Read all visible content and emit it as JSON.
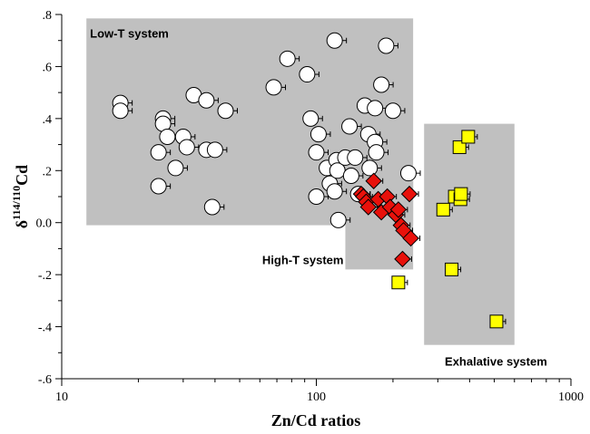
{
  "chart_data": {
    "type": "scatter",
    "xlabel": "Zn/Cd ratios",
    "ylabel_main": "δ",
    "ylabel_sup": "114/110",
    "ylabel_tail": "Cd",
    "x_scale": "log",
    "xlim": [
      10,
      1000
    ],
    "ylim": [
      -0.6,
      0.8
    ],
    "x_ticks": [
      10,
      100,
      1000
    ],
    "x_tick_labels": [
      "10",
      "100",
      "1000"
    ],
    "y_ticks": [
      -0.6,
      -0.4,
      -0.2,
      0.0,
      0.2,
      0.4,
      0.6,
      0.8
    ],
    "y_tick_labels": [
      "-.6",
      "-.4",
      "-.2",
      "0.0",
      ".2",
      ".4",
      ".6",
      ".8"
    ],
    "grid": false,
    "legend": "none",
    "regions": [
      {
        "label": "Low-T system",
        "x_range": [
          12.5,
          240
        ],
        "y_range": [
          -0.01,
          0.785
        ],
        "label_pos": "top-left"
      },
      {
        "label": "High-T system",
        "x_range": [
          130,
          240
        ],
        "y_range": [
          -0.18,
          0.21
        ],
        "label_pos": "bottom-left-outside"
      },
      {
        "label": "Exhalative system",
        "x_range": [
          265,
          600
        ],
        "y_range": [
          -0.47,
          0.38
        ],
        "label_pos": "below-right"
      }
    ],
    "colors": {
      "region": "#c0c0c0",
      "low_t": "#ffffff",
      "high_t": "#e8110b",
      "exhalative": "#ffff00",
      "stroke": "#000000"
    },
    "series": [
      {
        "group": "low-t",
        "marker": "circle",
        "points": [
          {
            "x": 17,
            "y": 0.46
          },
          {
            "x": 17,
            "y": 0.43
          },
          {
            "x": 24,
            "y": 0.27
          },
          {
            "x": 24,
            "y": 0.14
          },
          {
            "x": 25,
            "y": 0.4
          },
          {
            "x": 25,
            "y": 0.38
          },
          {
            "x": 26,
            "y": 0.33
          },
          {
            "x": 28,
            "y": 0.21
          },
          {
            "x": 30,
            "y": 0.33
          },
          {
            "x": 31,
            "y": 0.29
          },
          {
            "x": 33,
            "y": 0.49
          },
          {
            "x": 37,
            "y": 0.47
          },
          {
            "x": 37,
            "y": 0.28
          },
          {
            "x": 39,
            "y": 0.06
          },
          {
            "x": 40,
            "y": 0.28
          },
          {
            "x": 44,
            "y": 0.43
          },
          {
            "x": 68,
            "y": 0.52
          },
          {
            "x": 77,
            "y": 0.63
          },
          {
            "x": 92,
            "y": 0.57
          },
          {
            "x": 95,
            "y": 0.4
          },
          {
            "x": 100,
            "y": 0.27
          },
          {
            "x": 102,
            "y": 0.34
          },
          {
            "x": 100,
            "y": 0.1
          },
          {
            "x": 110,
            "y": 0.21
          },
          {
            "x": 113,
            "y": 0.15
          },
          {
            "x": 118,
            "y": 0.7
          },
          {
            "x": 118,
            "y": 0.12
          },
          {
            "x": 120,
            "y": 0.24
          },
          {
            "x": 121,
            "y": 0.2
          },
          {
            "x": 122,
            "y": 0.01
          },
          {
            "x": 130,
            "y": 0.25
          },
          {
            "x": 135,
            "y": 0.37
          },
          {
            "x": 137,
            "y": 0.18
          },
          {
            "x": 142,
            "y": 0.25
          },
          {
            "x": 146,
            "y": 0.11
          },
          {
            "x": 155,
            "y": 0.45
          },
          {
            "x": 160,
            "y": 0.34
          },
          {
            "x": 162,
            "y": 0.21
          },
          {
            "x": 170,
            "y": 0.31
          },
          {
            "x": 170,
            "y": 0.44
          },
          {
            "x": 172,
            "y": 0.27
          },
          {
            "x": 180,
            "y": 0.53
          },
          {
            "x": 188,
            "y": 0.68
          },
          {
            "x": 200,
            "y": 0.43
          },
          {
            "x": 230,
            "y": 0.19
          }
        ]
      },
      {
        "group": "high-t",
        "marker": "diamond",
        "points": [
          {
            "x": 150,
            "y": 0.11
          },
          {
            "x": 153,
            "y": 0.1
          },
          {
            "x": 157,
            "y": 0.08
          },
          {
            "x": 160,
            "y": 0.06
          },
          {
            "x": 168,
            "y": 0.16
          },
          {
            "x": 175,
            "y": 0.09
          },
          {
            "x": 180,
            "y": 0.04
          },
          {
            "x": 190,
            "y": 0.1
          },
          {
            "x": 195,
            "y": 0.06
          },
          {
            "x": 205,
            "y": 0.03
          },
          {
            "x": 210,
            "y": 0.05
          },
          {
            "x": 215,
            "y": -0.01
          },
          {
            "x": 220,
            "y": -0.03
          },
          {
            "x": 232,
            "y": 0.11
          },
          {
            "x": 235,
            "y": -0.06
          },
          {
            "x": 218,
            "y": -0.14
          }
        ]
      },
      {
        "group": "exhalative",
        "marker": "square",
        "points": [
          {
            "x": 210,
            "y": -0.23
          },
          {
            "x": 315,
            "y": 0.05
          },
          {
            "x": 340,
            "y": -0.18
          },
          {
            "x": 350,
            "y": 0.1
          },
          {
            "x": 365,
            "y": 0.29
          },
          {
            "x": 368,
            "y": 0.09
          },
          {
            "x": 370,
            "y": 0.11
          },
          {
            "x": 395,
            "y": 0.33
          },
          {
            "x": 510,
            "y": -0.38
          }
        ]
      }
    ]
  }
}
